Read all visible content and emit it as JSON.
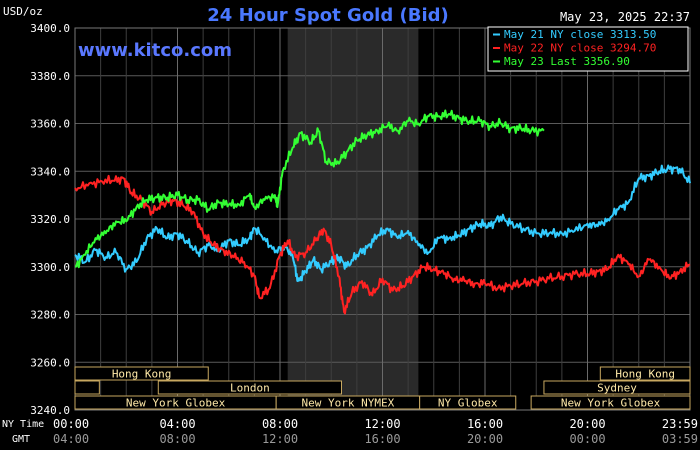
{
  "chart_data": {
    "type": "line",
    "title": "24 Hour Spot Gold (Bid)",
    "watermark": "www.kitco.com",
    "timestamp": "May 23, 2025 22:37",
    "unit": "USD/oz",
    "y_ticks": [
      "3400.0",
      "3380.0",
      "3360.0",
      "3340.0",
      "3320.0",
      "3300.0",
      "3280.0",
      "3260.0",
      "3240.0"
    ],
    "ylim": [
      3240,
      3400
    ],
    "xlim": [
      0,
      24
    ],
    "x_ticks": [
      {
        "t": 0,
        "ny": "00:00",
        "gmt": "04:00"
      },
      {
        "t": 4,
        "ny": "04:00",
        "gmt": "08:00"
      },
      {
        "t": 8,
        "ny": "08:00",
        "gmt": "12:00"
      },
      {
        "t": 12,
        "ny": "12:00",
        "gmt": "16:00"
      },
      {
        "t": 16,
        "ny": "16:00",
        "gmt": "20:00"
      },
      {
        "t": 20,
        "ny": "20:00",
        "gmt": "00:00"
      },
      {
        "t": 24,
        "ny": "23:59",
        "gmt": "03:59"
      }
    ],
    "row_labels": {
      "ny": "NY Time",
      "gmt": "GMT"
    },
    "shaded_region": [
      8.3,
      13.4
    ],
    "legend": [
      {
        "label": "May 21 NY close 3313.50",
        "color": "#33ccff"
      },
      {
        "label": "May 22 NY close 3294.70",
        "color": "#ff2222"
      },
      {
        "label": "May 23 Last 3356.90",
        "color": "#33ff33"
      }
    ],
    "sessions": [
      {
        "label": "Hong Kong",
        "start": 0,
        "end": 5.2,
        "row": 0
      },
      {
        "label": "Hong Kong",
        "start": 20.5,
        "end": 24,
        "row": 0
      },
      {
        "label": "",
        "start": 0,
        "end": 0.95,
        "row": 1
      },
      {
        "label": "London",
        "start": 3.25,
        "end": 10.4,
        "row": 1
      },
      {
        "label": "Sydney",
        "start": 18.3,
        "end": 24,
        "row": 1
      },
      {
        "label": "New York Globex",
        "start": 0,
        "end": 7.85,
        "row": 2
      },
      {
        "label": "New York NYMEX",
        "start": 7.85,
        "end": 13.45,
        "row": 2
      },
      {
        "label": "NY Globex",
        "start": 13.45,
        "end": 17.2,
        "row": 2
      },
      {
        "label": "New York Globex",
        "start": 17.8,
        "end": 24,
        "row": 2
      }
    ],
    "series": [
      {
        "name": "May 21 NY close 3313.50",
        "color": "#33ccff",
        "points": [
          [
            0,
            3305
          ],
          [
            0.4,
            3302
          ],
          [
            0.8,
            3307
          ],
          [
            1.2,
            3304
          ],
          [
            1.6,
            3306
          ],
          [
            2.0,
            3299
          ],
          [
            2.4,
            3302
          ],
          [
            2.8,
            3312
          ],
          [
            3.2,
            3316
          ],
          [
            3.6,
            3312
          ],
          [
            4.0,
            3314
          ],
          [
            4.4,
            3310
          ],
          [
            4.8,
            3306
          ],
          [
            5.2,
            3309
          ],
          [
            5.6,
            3307
          ],
          [
            6.0,
            3311
          ],
          [
            6.4,
            3309
          ],
          [
            6.8,
            3312
          ],
          [
            7.0,
            3316
          ],
          [
            7.4,
            3312
          ],
          [
            7.8,
            3306
          ],
          [
            8.2,
            3309
          ],
          [
            8.5,
            3304
          ],
          [
            8.7,
            3294
          ],
          [
            9.0,
            3298
          ],
          [
            9.3,
            3303
          ],
          [
            9.6,
            3299
          ],
          [
            10.0,
            3302
          ],
          [
            10.3,
            3304
          ],
          [
            10.6,
            3300
          ],
          [
            11.0,
            3305
          ],
          [
            11.4,
            3308
          ],
          [
            11.8,
            3313
          ],
          [
            12.2,
            3316
          ],
          [
            12.6,
            3312
          ],
          [
            13.0,
            3315
          ],
          [
            13.4,
            3309
          ],
          [
            13.8,
            3306
          ],
          [
            14.2,
            3312
          ],
          [
            14.6,
            3312
          ],
          [
            15.0,
            3313
          ],
          [
            15.4,
            3316
          ],
          [
            15.8,
            3318
          ],
          [
            16.2,
            3317
          ],
          [
            16.6,
            3321
          ],
          [
            17.0,
            3318
          ],
          [
            17.5,
            3316
          ],
          [
            18.0,
            3314
          ],
          [
            18.5,
            3314
          ],
          [
            19.0,
            3314
          ],
          [
            19.5,
            3315
          ],
          [
            20.0,
            3318
          ],
          [
            20.4,
            3317
          ],
          [
            20.8,
            3320
          ],
          [
            21.2,
            3324
          ],
          [
            21.6,
            3327
          ],
          [
            22.0,
            3337
          ],
          [
            22.4,
            3338
          ],
          [
            22.8,
            3340
          ],
          [
            23.2,
            3341
          ],
          [
            23.6,
            3341
          ],
          [
            24.0,
            3335
          ]
        ]
      },
      {
        "name": "May 22 NY close 3294.70",
        "color": "#ff2222",
        "points": [
          [
            0,
            3333
          ],
          [
            0.5,
            3334
          ],
          [
            1.0,
            3336
          ],
          [
            1.5,
            3336
          ],
          [
            1.9,
            3337
          ],
          [
            2.2,
            3331
          ],
          [
            2.6,
            3328
          ],
          [
            3.0,
            3323
          ],
          [
            3.4,
            3326
          ],
          [
            3.8,
            3328
          ],
          [
            4.2,
            3326
          ],
          [
            4.6,
            3323
          ],
          [
            5.0,
            3314
          ],
          [
            5.4,
            3309
          ],
          [
            5.8,
            3307
          ],
          [
            6.2,
            3304
          ],
          [
            6.6,
            3302
          ],
          [
            7.0,
            3296
          ],
          [
            7.2,
            3287
          ],
          [
            7.6,
            3291
          ],
          [
            8.0,
            3305
          ],
          [
            8.3,
            3311
          ],
          [
            8.6,
            3304
          ],
          [
            9.0,
            3306
          ],
          [
            9.4,
            3311
          ],
          [
            9.7,
            3316
          ],
          [
            10.0,
            3309
          ],
          [
            10.3,
            3296
          ],
          [
            10.5,
            3281
          ],
          [
            10.8,
            3289
          ],
          [
            11.2,
            3294
          ],
          [
            11.6,
            3288
          ],
          [
            12.0,
            3295
          ],
          [
            12.4,
            3290
          ],
          [
            12.8,
            3292
          ],
          [
            13.2,
            3296
          ],
          [
            13.6,
            3300
          ],
          [
            14.0,
            3299
          ],
          [
            14.4,
            3297
          ],
          [
            14.8,
            3295
          ],
          [
            15.2,
            3294
          ],
          [
            15.6,
            3293
          ],
          [
            16.0,
            3293
          ],
          [
            16.5,
            3291
          ],
          [
            17.0,
            3292
          ],
          [
            17.5,
            3293
          ],
          [
            18.0,
            3294
          ],
          [
            18.5,
            3295
          ],
          [
            19.0,
            3296
          ],
          [
            19.5,
            3297
          ],
          [
            20.0,
            3297
          ],
          [
            20.4,
            3298
          ],
          [
            20.8,
            3299
          ],
          [
            21.2,
            3305
          ],
          [
            21.6,
            3301
          ],
          [
            22.0,
            3296
          ],
          [
            22.4,
            3303
          ],
          [
            22.8,
            3300
          ],
          [
            23.2,
            3295
          ],
          [
            23.6,
            3298
          ],
          [
            24.0,
            3301
          ]
        ]
      },
      {
        "name": "May 23 Last 3356.90",
        "color": "#33ff33",
        "points": [
          [
            0,
            3300
          ],
          [
            0.4,
            3305
          ],
          [
            0.8,
            3312
          ],
          [
            1.2,
            3314
          ],
          [
            1.6,
            3319
          ],
          [
            2.0,
            3319
          ],
          [
            2.4,
            3325
          ],
          [
            2.8,
            3328
          ],
          [
            3.2,
            3329
          ],
          [
            3.6,
            3329
          ],
          [
            4.0,
            3330
          ],
          [
            4.4,
            3328
          ],
          [
            4.8,
            3328
          ],
          [
            5.2,
            3324
          ],
          [
            5.6,
            3327
          ],
          [
            6.0,
            3326
          ],
          [
            6.4,
            3326
          ],
          [
            6.8,
            3330
          ],
          [
            7.0,
            3325
          ],
          [
            7.4,
            3328
          ],
          [
            7.8,
            3330
          ],
          [
            7.9,
            3325
          ],
          [
            8.1,
            3340
          ],
          [
            8.5,
            3350
          ],
          [
            8.8,
            3356
          ],
          [
            9.2,
            3352
          ],
          [
            9.5,
            3357
          ],
          [
            9.8,
            3344
          ],
          [
            10.2,
            3343
          ],
          [
            10.6,
            3348
          ],
          [
            11.0,
            3353
          ],
          [
            11.4,
            3355
          ],
          [
            11.8,
            3357
          ],
          [
            12.2,
            3359
          ],
          [
            12.6,
            3357
          ],
          [
            13.0,
            3361
          ],
          [
            13.4,
            3360
          ],
          [
            13.8,
            3363
          ],
          [
            14.2,
            3363
          ],
          [
            14.6,
            3364
          ],
          [
            15.0,
            3362
          ],
          [
            15.4,
            3361
          ],
          [
            15.8,
            3361
          ],
          [
            16.2,
            3359
          ],
          [
            16.6,
            3360
          ],
          [
            17.0,
            3358
          ],
          [
            17.4,
            3358
          ],
          [
            17.8,
            3357
          ],
          [
            18.3,
            3357
          ]
        ]
      }
    ]
  }
}
